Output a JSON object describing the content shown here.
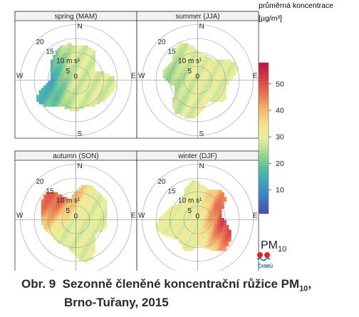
{
  "chart_data": {
    "type": "heatmap",
    "subtype": "polar pollution rose (concentration by wind speed and direction)",
    "panels": [
      {
        "title": "spring (MAM)",
        "hot_direction": "W",
        "hot_level": 14,
        "center_level": 28
      },
      {
        "title": "summer (JJA)",
        "hot_direction": "W",
        "hot_level": 24,
        "center_level": 29
      },
      {
        "title": "autumn (SON)",
        "hot_direction": "NW",
        "hot_level": 48,
        "center_level": 29
      },
      {
        "title": "winter (DJF)",
        "hot_direction": "E",
        "hot_level": 52,
        "center_level": 30
      }
    ],
    "compass": [
      "N",
      "E",
      "S",
      "W"
    ],
    "radial_ticks": [
      "0",
      "5",
      "10 m s¹",
      "15",
      "20"
    ],
    "radial_values": [
      0,
      5,
      10,
      15,
      20
    ],
    "colorbar": {
      "title": "průměrná koncentrace",
      "unit": "[µg/m³]",
      "ticks": [
        10,
        20,
        30,
        40,
        50
      ],
      "range": [
        1,
        58
      ],
      "colors": [
        "#4b4aa6",
        "#3f7bbd",
        "#3aa2c2",
        "#58bd9f",
        "#a6d88e",
        "#e9ef9f",
        "#f5e08c",
        "#f3b16a",
        "#e86f4c",
        "#d63c46",
        "#b2164a"
      ]
    },
    "legend_label": "PM",
    "legend_sub": "10",
    "legend_logo_text": "ČHMÚ"
  },
  "caption": {
    "prefix": "Obr. 9",
    "text": "Sezonně členěné koncentrační růžice PM",
    "sub": "10",
    "suffix": ",",
    "line2": "Brno-Tuřany, 2015"
  }
}
